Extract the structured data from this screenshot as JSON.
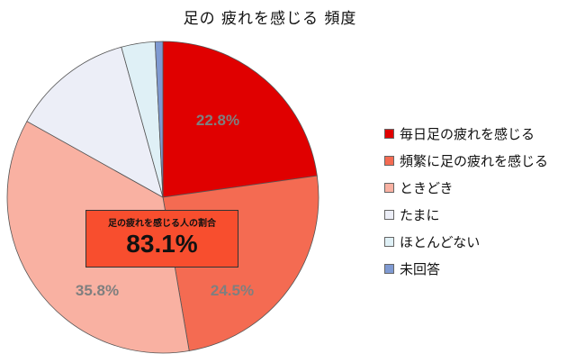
{
  "chart_data": {
    "type": "pie",
    "title": "足の 疲れを感じる 頻度",
    "legend_position": "right",
    "slices": [
      {
        "label": "毎日足の疲れを感じる",
        "value": 22.8,
        "value_label": "22.8%",
        "color": "#e00000"
      },
      {
        "label": "頻繁に足の疲れを感じる",
        "value": 24.5,
        "value_label": "24.5%",
        "color": "#f46b52"
      },
      {
        "label": "ときどき",
        "value": 35.8,
        "value_label": "35.8%",
        "color": "#f9b1a2"
      },
      {
        "label": "たまに",
        "value": 12.6,
        "value_label": "",
        "color": "#eceef7"
      },
      {
        "label": "ほとんどない",
        "value": 3.5,
        "value_label": "",
        "color": "#dff0f6"
      },
      {
        "label": "未回答",
        "value": 0.8,
        "value_label": "",
        "color": "#7f9ad2"
      }
    ],
    "callout": {
      "caption": "足の疲れを感じる人の割合",
      "value": "83.1%"
    },
    "data_label_color": "#7f7f7f"
  }
}
